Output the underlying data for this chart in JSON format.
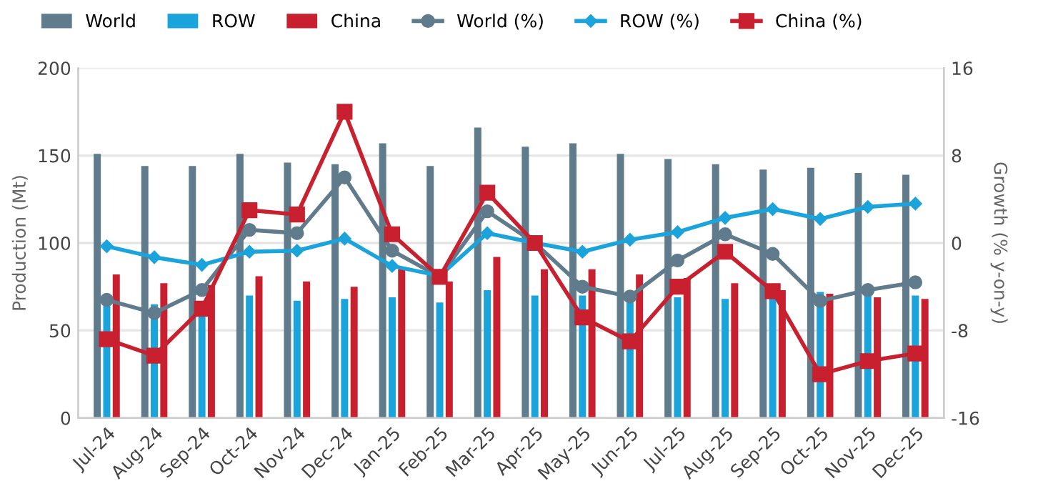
{
  "chart_data": {
    "type": "bar",
    "xlabel": null,
    "ylabel": "Production (Mt)",
    "y2label": "Growth (% y-on-y)",
    "categories": [
      "Jul-24",
      "Aug-24",
      "Sep-24",
      "Oct-24",
      "Nov-24",
      "Dec-24",
      "Jan-25",
      "Feb-25",
      "Mar-25",
      "Apr-25",
      "May-25",
      "Jun-25",
      "Jul-25",
      "Aug-25",
      "Sep-25",
      "Oct-25",
      "Nov-25",
      "Dec-25"
    ],
    "ylim": [
      0,
      200
    ],
    "yticks": [
      0,
      50,
      100,
      150,
      200
    ],
    "y2lim": [
      -16,
      16
    ],
    "y2ticks": [
      -16,
      -8,
      0,
      8,
      16
    ],
    "grid": "y",
    "legend": "top left",
    "series": [
      {
        "name": "World",
        "color": "#5f7b8c",
        "values": [
          151,
          144,
          144,
          151,
          146,
          145,
          157,
          144,
          166,
          155,
          157,
          151,
          148,
          145,
          142,
          143,
          140,
          139
        ]
      },
      {
        "name": "ROW",
        "color": "#1ba3dc",
        "values": [
          64,
          65,
          60,
          70,
          67,
          68,
          69,
          66,
          73,
          70,
          70,
          66,
          69,
          68,
          70,
          72,
          70,
          70
        ]
      },
      {
        "name": "China",
        "color": "#c8202f",
        "values": [
          82,
          77,
          76,
          81,
          78,
          75,
          85,
          78,
          92,
          85,
          85,
          82,
          80,
          77,
          73,
          71,
          69,
          68
        ]
      },
      {
        "name": "World (%)",
        "type": "line",
        "axis": "y2",
        "marker": "circle",
        "color": "#5f7b8c",
        "values": [
          -5.2,
          -6.4,
          -4.3,
          1.2,
          0.9,
          6.0,
          -0.7,
          -3.1,
          2.9,
          0,
          -4.0,
          -4.9,
          -1.6,
          0.8,
          -1.0,
          -5.3,
          -4.3,
          -3.6
        ]
      },
      {
        "name": "ROW (%)",
        "type": "line",
        "axis": "y2",
        "marker": "diamond",
        "color": "#1ba3dc",
        "values": [
          -0.3,
          -1.3,
          -2.0,
          -0.8,
          -0.7,
          0.4,
          -2.1,
          -3.0,
          0.9,
          0,
          -0.8,
          0.3,
          1.0,
          2.3,
          3.1,
          2.2,
          3.3,
          3.6
        ]
      },
      {
        "name": "China (%)",
        "type": "line",
        "axis": "y2",
        "marker": "square",
        "color": "#c8202f",
        "values": [
          -8.8,
          -10.3,
          -6.0,
          3.0,
          2.6,
          12.0,
          0.8,
          -3.1,
          4.6,
          0,
          -6.8,
          -9.0,
          -4.0,
          -0.8,
          -4.4,
          -12.0,
          -10.8,
          -10.1
        ]
      }
    ]
  }
}
